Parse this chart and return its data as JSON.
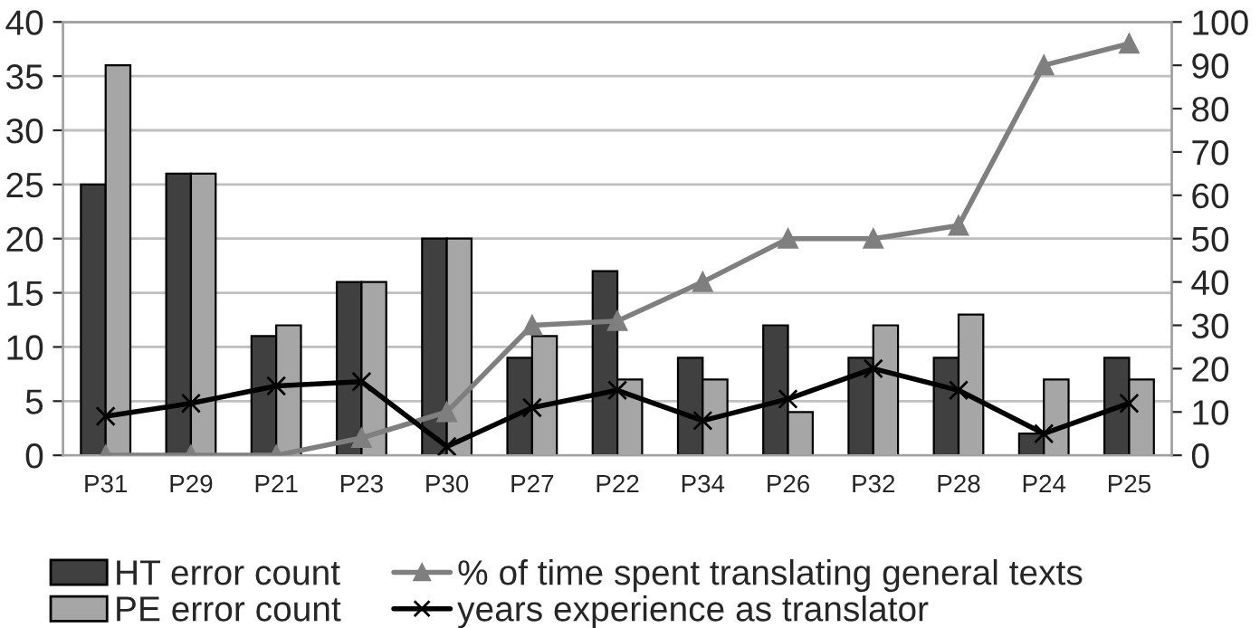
{
  "chart_data": {
    "type": "bar",
    "categories": [
      "P31",
      "P29",
      "P21",
      "P23",
      "P30",
      "P27",
      "P22",
      "P34",
      "P26",
      "P32",
      "P28",
      "P24",
      "P25"
    ],
    "series": [
      {
        "name": "HT error count",
        "color": "#404040",
        "values": [
          25,
          26,
          11,
          16,
          20,
          9,
          17,
          9,
          12,
          9,
          9,
          2,
          9
        ]
      },
      {
        "name": "PE error count",
        "color": "#a6a6a6",
        "values": [
          36,
          26,
          12,
          16,
          20,
          11,
          7,
          7,
          4,
          12,
          13,
          7,
          7
        ]
      },
      {
        "name": "% of time spent translating general texts",
        "type": "line",
        "axis": "y2",
        "color": "#7f7f7f",
        "marker": "triangle",
        "values": [
          0,
          0,
          0,
          4,
          10,
          30,
          31,
          40,
          50,
          50,
          53,
          90,
          95
        ]
      },
      {
        "name": "years experience as translator",
        "type": "line",
        "axis": "y2",
        "color": "#000000",
        "marker": "cross",
        "values": [
          9,
          12,
          16,
          17,
          2,
          11,
          15,
          8,
          13,
          20,
          15,
          5,
          12
        ]
      }
    ],
    "ylim": [
      0,
      40
    ],
    "yticks": [
      0,
      5,
      10,
      15,
      20,
      25,
      30,
      35,
      40
    ],
    "y2lim": [
      0,
      100
    ],
    "y2ticks": [
      0,
      10,
      20,
      30,
      40,
      50,
      60,
      70,
      80,
      90,
      100
    ],
    "grid": "y",
    "legend": "bottom"
  }
}
